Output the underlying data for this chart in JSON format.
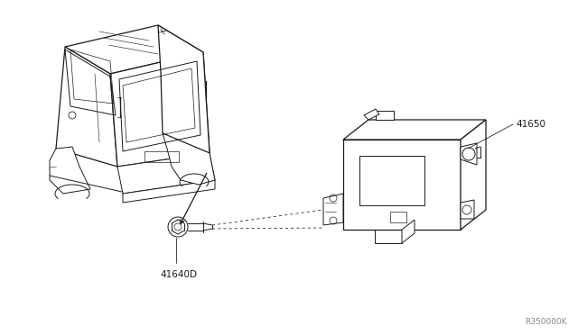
{
  "bg_color": "#ffffff",
  "line_color": "#1a1a1a",
  "label_color": "#1a1a1a",
  "watermark_color": "#888888",
  "part_label_41650": "41650",
  "part_label_41640D": "41640D",
  "watermark": "R350000K",
  "fig_width": 6.4,
  "fig_height": 3.72,
  "dpi": 100
}
